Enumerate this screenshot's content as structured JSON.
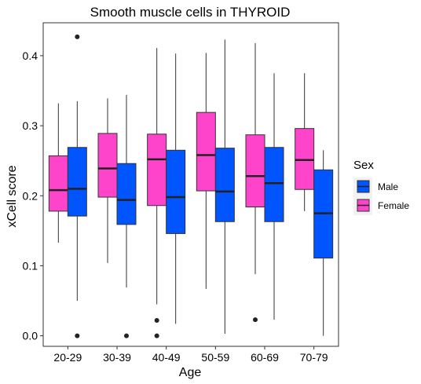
{
  "chart_data": {
    "type": "boxplot",
    "title": "Smooth muscle cells in THYROID",
    "xlabel": "Age",
    "ylabel": "xCell score",
    "categories": [
      "20-29",
      "30-39",
      "40-49",
      "50-59",
      "60-69",
      "70-79"
    ],
    "yticks": [
      "0.0",
      "0.1",
      "0.2",
      "0.3",
      "0.4"
    ],
    "ylim": [
      -0.015,
      0.447
    ],
    "grid": false,
    "legend": {
      "title": "Sex",
      "position": "right",
      "entries": [
        {
          "label": "Male",
          "color": "#0055ff"
        },
        {
          "label": "Female",
          "color": "#ff44cc"
        }
      ]
    },
    "series": [
      {
        "name": "Female",
        "color": "#ff44cc",
        "boxes": [
          {
            "whisker_low": 0.133,
            "q1": 0.178,
            "median": 0.208,
            "q3": 0.257,
            "whisker_high": 0.332,
            "outliers": []
          },
          {
            "whisker_low": 0.104,
            "q1": 0.198,
            "median": 0.239,
            "q3": 0.289,
            "whisker_high": 0.339,
            "outliers": []
          },
          {
            "whisker_low": 0.045,
            "q1": 0.186,
            "median": 0.252,
            "q3": 0.288,
            "whisker_high": 0.411,
            "outliers": [
              0.022,
              0.0
            ]
          },
          {
            "whisker_low": 0.067,
            "q1": 0.207,
            "median": 0.258,
            "q3": 0.319,
            "whisker_high": 0.404,
            "outliers": []
          },
          {
            "whisker_low": 0.088,
            "q1": 0.184,
            "median": 0.228,
            "q3": 0.287,
            "whisker_high": 0.418,
            "outliers": [
              0.023
            ]
          },
          {
            "whisker_low": 0.178,
            "q1": 0.209,
            "median": 0.251,
            "q3": 0.296,
            "whisker_high": 0.375,
            "outliers": []
          }
        ]
      },
      {
        "name": "Male",
        "color": "#0055ff",
        "boxes": [
          {
            "whisker_low": 0.05,
            "q1": 0.171,
            "median": 0.21,
            "q3": 0.269,
            "whisker_high": 0.335,
            "outliers": [
              0.427,
              0.0
            ]
          },
          {
            "whisker_low": 0.069,
            "q1": 0.159,
            "median": 0.194,
            "q3": 0.246,
            "whisker_high": 0.344,
            "outliers": [
              0.0
            ]
          },
          {
            "whisker_low": 0.017,
            "q1": 0.146,
            "median": 0.198,
            "q3": 0.265,
            "whisker_high": 0.403,
            "outliers": []
          },
          {
            "whisker_low": 0.003,
            "q1": 0.163,
            "median": 0.206,
            "q3": 0.268,
            "whisker_high": 0.423,
            "outliers": []
          },
          {
            "whisker_low": 0.023,
            "q1": 0.163,
            "median": 0.218,
            "q3": 0.269,
            "whisker_high": 0.375,
            "outliers": []
          },
          {
            "whisker_low": 0.0,
            "q1": 0.111,
            "median": 0.175,
            "q3": 0.237,
            "whisker_high": 0.265,
            "outliers": []
          }
        ]
      }
    ]
  }
}
